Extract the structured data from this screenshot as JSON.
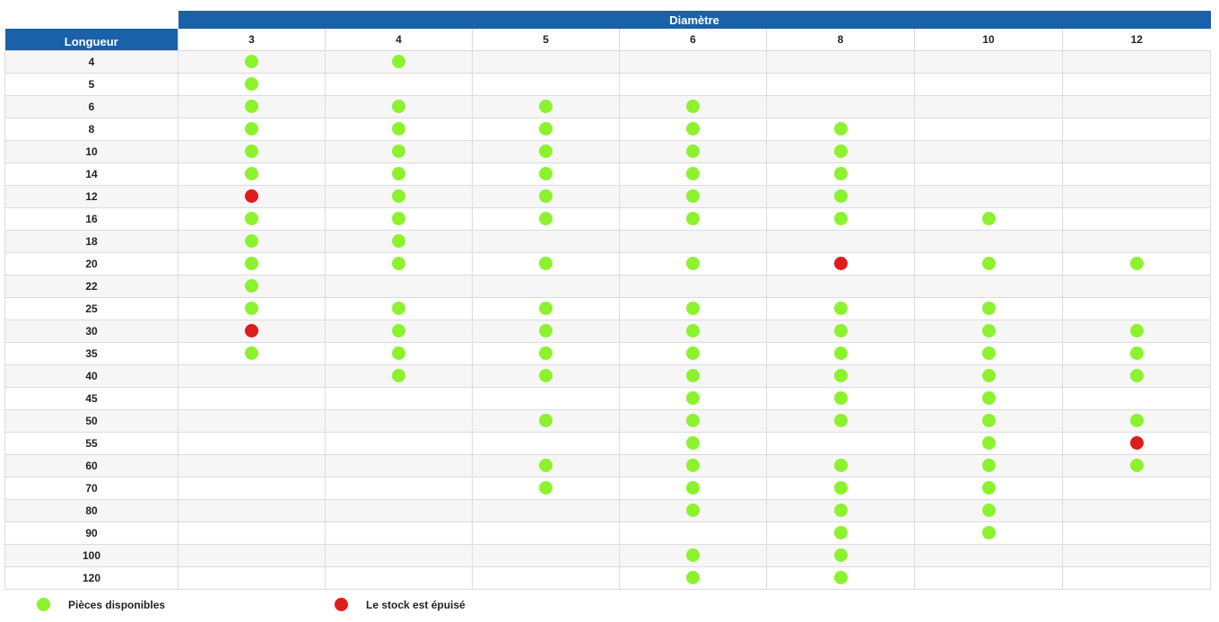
{
  "top_note": "",
  "header": {
    "diametre_label": "Diamètre",
    "longueur_label": "Longueur",
    "diameters": [
      "3",
      "4",
      "5",
      "6",
      "8",
      "10",
      "12"
    ]
  },
  "colors": {
    "header_bg": "#1961a9",
    "available": "#8cf22e",
    "out_of_stock": "#dd1c1c"
  },
  "rows": [
    {
      "length": "4",
      "cells": [
        "G",
        "G",
        "",
        "",
        "",
        "",
        ""
      ]
    },
    {
      "length": "5",
      "cells": [
        "G",
        "",
        "",
        "",
        "",
        "",
        ""
      ]
    },
    {
      "length": "6",
      "cells": [
        "G",
        "G",
        "G",
        "G",
        "",
        "",
        ""
      ]
    },
    {
      "length": "8",
      "cells": [
        "G",
        "G",
        "G",
        "G",
        "G",
        "",
        ""
      ]
    },
    {
      "length": "10",
      "cells": [
        "G",
        "G",
        "G",
        "G",
        "G",
        "",
        ""
      ]
    },
    {
      "length": "14",
      "cells": [
        "G",
        "G",
        "G",
        "G",
        "G",
        "",
        ""
      ]
    },
    {
      "length": "12",
      "cells": [
        "R",
        "G",
        "G",
        "G",
        "G",
        "",
        ""
      ]
    },
    {
      "length": "16",
      "cells": [
        "G",
        "G",
        "G",
        "G",
        "G",
        "G",
        ""
      ]
    },
    {
      "length": "18",
      "cells": [
        "G",
        "G",
        "",
        "",
        "",
        "",
        ""
      ]
    },
    {
      "length": "20",
      "cells": [
        "G",
        "G",
        "G",
        "G",
        "R",
        "G",
        "G"
      ]
    },
    {
      "length": "22",
      "cells": [
        "G",
        "",
        "",
        "",
        "",
        "",
        ""
      ]
    },
    {
      "length": "25",
      "cells": [
        "G",
        "G",
        "G",
        "G",
        "G",
        "G",
        ""
      ]
    },
    {
      "length": "30",
      "cells": [
        "R",
        "G",
        "G",
        "G",
        "G",
        "G",
        "G"
      ]
    },
    {
      "length": "35",
      "cells": [
        "G",
        "G",
        "G",
        "G",
        "G",
        "G",
        "G"
      ]
    },
    {
      "length": "40",
      "cells": [
        "",
        "G",
        "G",
        "G",
        "G",
        "G",
        "G"
      ]
    },
    {
      "length": "45",
      "cells": [
        "",
        "",
        "",
        "G",
        "G",
        "G",
        ""
      ]
    },
    {
      "length": "50",
      "cells": [
        "",
        "",
        "G",
        "G",
        "G",
        "G",
        "G"
      ]
    },
    {
      "length": "55",
      "cells": [
        "",
        "",
        "",
        "G",
        "",
        "G",
        "R"
      ]
    },
    {
      "length": "60",
      "cells": [
        "",
        "",
        "G",
        "G",
        "G",
        "G",
        "G"
      ]
    },
    {
      "length": "70",
      "cells": [
        "",
        "",
        "G",
        "G",
        "G",
        "G",
        ""
      ]
    },
    {
      "length": "80",
      "cells": [
        "",
        "",
        "",
        "G",
        "G",
        "G",
        ""
      ]
    },
    {
      "length": "90",
      "cells": [
        "",
        "",
        "",
        "",
        "G",
        "G",
        ""
      ]
    },
    {
      "length": "100",
      "cells": [
        "",
        "",
        "",
        "G",
        "G",
        "",
        ""
      ]
    },
    {
      "length": "120",
      "cells": [
        "",
        "",
        "",
        "G",
        "G",
        "",
        ""
      ]
    }
  ],
  "legend": {
    "available_label": "Pièces disponibles",
    "out_label": "Le stock est épuisé"
  }
}
